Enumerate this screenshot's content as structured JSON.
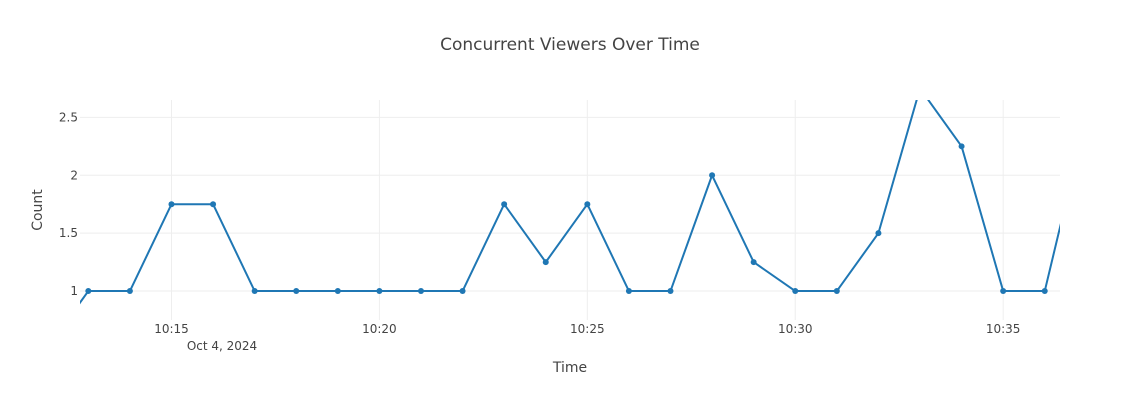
{
  "chart_data": {
    "type": "line",
    "title": "Concurrent Viewers Over Time",
    "xlabel": "Time",
    "ylabel": "Count",
    "x_date_label": "Oct 4, 2024",
    "x_tick_labels": [
      "10:15",
      "10:20",
      "10:25",
      "10:30",
      "10:35"
    ],
    "y_tick_labels": [
      "1",
      "1.5",
      "2",
      "2.5"
    ],
    "y_ticks": [
      1,
      1.5,
      2,
      2.5
    ],
    "x_ticks": [
      "10:15",
      "10:20",
      "10:25",
      "10:30",
      "10:35"
    ],
    "xlim": [
      "10:12:48",
      "10:36:22"
    ],
    "ylim": [
      0.75,
      2.65
    ],
    "grid": true,
    "legend": false,
    "line_color": "#1f77b4",
    "x": [
      "10:12",
      "10:13",
      "10:14",
      "10:15",
      "10:16",
      "10:17",
      "10:18",
      "10:19",
      "10:20",
      "10:21",
      "10:22",
      "10:23",
      "10:24",
      "10:25",
      "10:26",
      "10:27",
      "10:28",
      "10:29",
      "10:30",
      "10:31",
      "10:32",
      "10:33",
      "10:34",
      "10:35",
      "10:36",
      "10:37"
    ],
    "values": [
      0.5,
      1,
      1,
      1.75,
      1.75,
      1,
      1,
      1,
      1,
      1,
      1,
      1.75,
      1.25,
      1.75,
      1,
      1,
      2,
      1.25,
      1,
      1,
      1.5,
      2.75,
      2.25,
      1,
      1,
      2.5
    ]
  }
}
